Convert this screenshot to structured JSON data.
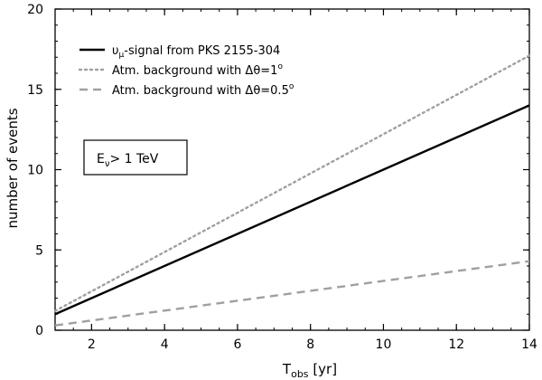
{
  "chart_data": {
    "type": "line",
    "xlabel_main": "T",
    "xlabel_sub": "obs",
    "xlabel_unit": " [yr]",
    "ylabel": "number of events",
    "xlim": [
      1,
      14
    ],
    "ylim": [
      0,
      20
    ],
    "x_ticks": [
      2,
      4,
      6,
      8,
      10,
      12,
      14
    ],
    "y_ticks": [
      0,
      5,
      10,
      15,
      20
    ],
    "grid": false,
    "legend_position": "top-left",
    "series": [
      {
        "name": "υμ-signal from PKS 2155-304",
        "name_parts": {
          "main": "υ",
          "sub": "μ",
          "rest": "-signal from PKS 2155-304"
        },
        "x": [
          1,
          14
        ],
        "y": [
          1.0,
          14.0
        ],
        "color": "#000000",
        "style": "solid"
      },
      {
        "name": "Atm. background with Δθ=1°",
        "name_parts": {
          "main": "Atm. background with Δθ=1",
          "sup": "o",
          "rest": ""
        },
        "x": [
          1,
          14
        ],
        "y": [
          1.2,
          17.1
        ],
        "color": "#a0a0a0",
        "style": "dotted"
      },
      {
        "name": "Atm. background with Δθ=0.5°",
        "name_parts": {
          "main": "Atm. background with Δθ=0.5",
          "sup": "o",
          "rest": ""
        },
        "x": [
          1,
          14
        ],
        "y": [
          0.3,
          4.3
        ],
        "color": "#a0a0a0",
        "style": "dashed"
      }
    ],
    "annotation": {
      "main": "E",
      "sub": "ν",
      "rest": "> 1 TeV"
    }
  }
}
